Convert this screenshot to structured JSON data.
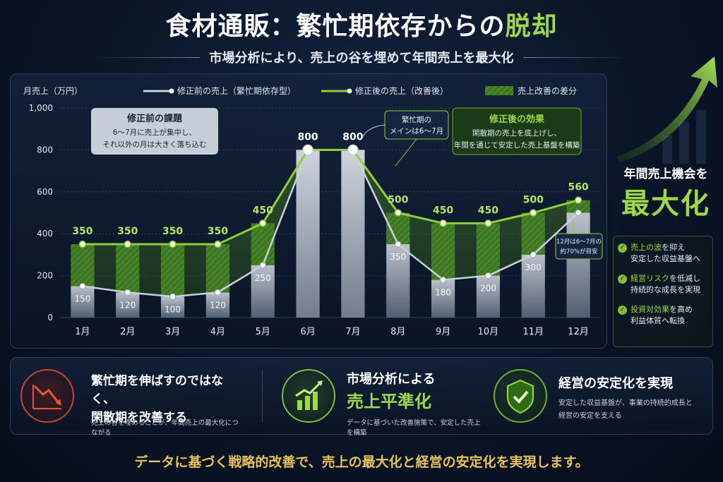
{
  "header": {
    "title_main": "食材通販：繁忙期依存からの",
    "title_accent": "脱却",
    "subtitle": "市場分析により、売上の谷を埋めて年間売上を最大化"
  },
  "chart_data": {
    "type": "bar",
    "ylabel": "月売上（万円）",
    "ylim": [
      0,
      1000
    ],
    "yticks": [
      "0",
      "200",
      "400",
      "600",
      "800",
      "1,000"
    ],
    "categories": [
      "1月",
      "2月",
      "3月",
      "4月",
      "5月",
      "6月",
      "7月",
      "8月",
      "9月",
      "10月",
      "11月",
      "12月"
    ],
    "series": [
      {
        "name": "修正前の売上（繁忙期依存型）",
        "values": [
          150,
          120,
          100,
          120,
          250,
          800,
          800,
          350,
          180,
          200,
          300,
          500
        ],
        "color": "#c9d1dc"
      },
      {
        "name": "修正後の売上（改善後）",
        "values": [
          350,
          350,
          350,
          350,
          450,
          800,
          800,
          500,
          450,
          450,
          500,
          560
        ],
        "color": "#8fcf3a"
      }
    ],
    "before_labels": [
      "150",
      "120",
      "100",
      "120",
      "250",
      "",
      "",
      "350",
      "180",
      "200",
      "300",
      ""
    ],
    "after_labels": [
      "350",
      "350",
      "350",
      "350",
      "450",
      "800",
      "800",
      "500",
      "450",
      "450",
      "500",
      "560"
    ],
    "diff_legend": "売上改善の差分",
    "grid": true,
    "legend_position": "top"
  },
  "annotations": {
    "before_box": {
      "title": "修正前の課題",
      "line1": "6〜7月に売上が集中し、",
      "line2": "それ以外の月は大きく落ち込む"
    },
    "peak_box": {
      "line1": "繁忙期の",
      "line2": "メインは6〜7月"
    },
    "effect_box": {
      "title": "修正後の効果",
      "line1": "閑散期の売上を底上げし、",
      "line2": "年間を通じて安定した売上基盤を構築"
    },
    "dec_box": {
      "line1": "12月は6〜7月の",
      "line2": "約70%が目安"
    }
  },
  "side": {
    "label": "年間売上機会を",
    "big": "最大化",
    "benefits": [
      {
        "hl": "売上の波",
        "rest1": "を抑え",
        "rest2": "安定した収益基盤へ"
      },
      {
        "hl": "経営リスク",
        "rest1": "を低減し",
        "rest2": "持続的な成長を実現"
      },
      {
        "hl": "投資対効果",
        "rest1": "を高め",
        "rest2": "利益体質へ転換"
      }
    ]
  },
  "cards": [
    {
      "icon": "trend-down-icon",
      "heading1": "繁忙期を伸ばすのではなく、",
      "heading2": "閑散期を改善する",
      "note": "売上の谷を埋めることが、年間売上の最大化につながる"
    },
    {
      "icon": "bar-growth-icon",
      "heading1": "市場分析による",
      "heading2": "売上平準化",
      "note": "データに基づいた改善施策で、安定した売上を構築"
    },
    {
      "icon": "shield-check-icon",
      "heading1": "経営の安定化を実現",
      "note1": "安定した収益基盤が、事業の持続的成長と",
      "note2": "経営の安定を支える"
    }
  ],
  "footer": "データに基づく戦略的改善で、売上の最大化と経営の安定化を実現します。",
  "colors": {
    "accent": "#9ed84a",
    "gold": "#e8c25a",
    "before": "#c9d1dc",
    "after": "#8fcf3a"
  }
}
